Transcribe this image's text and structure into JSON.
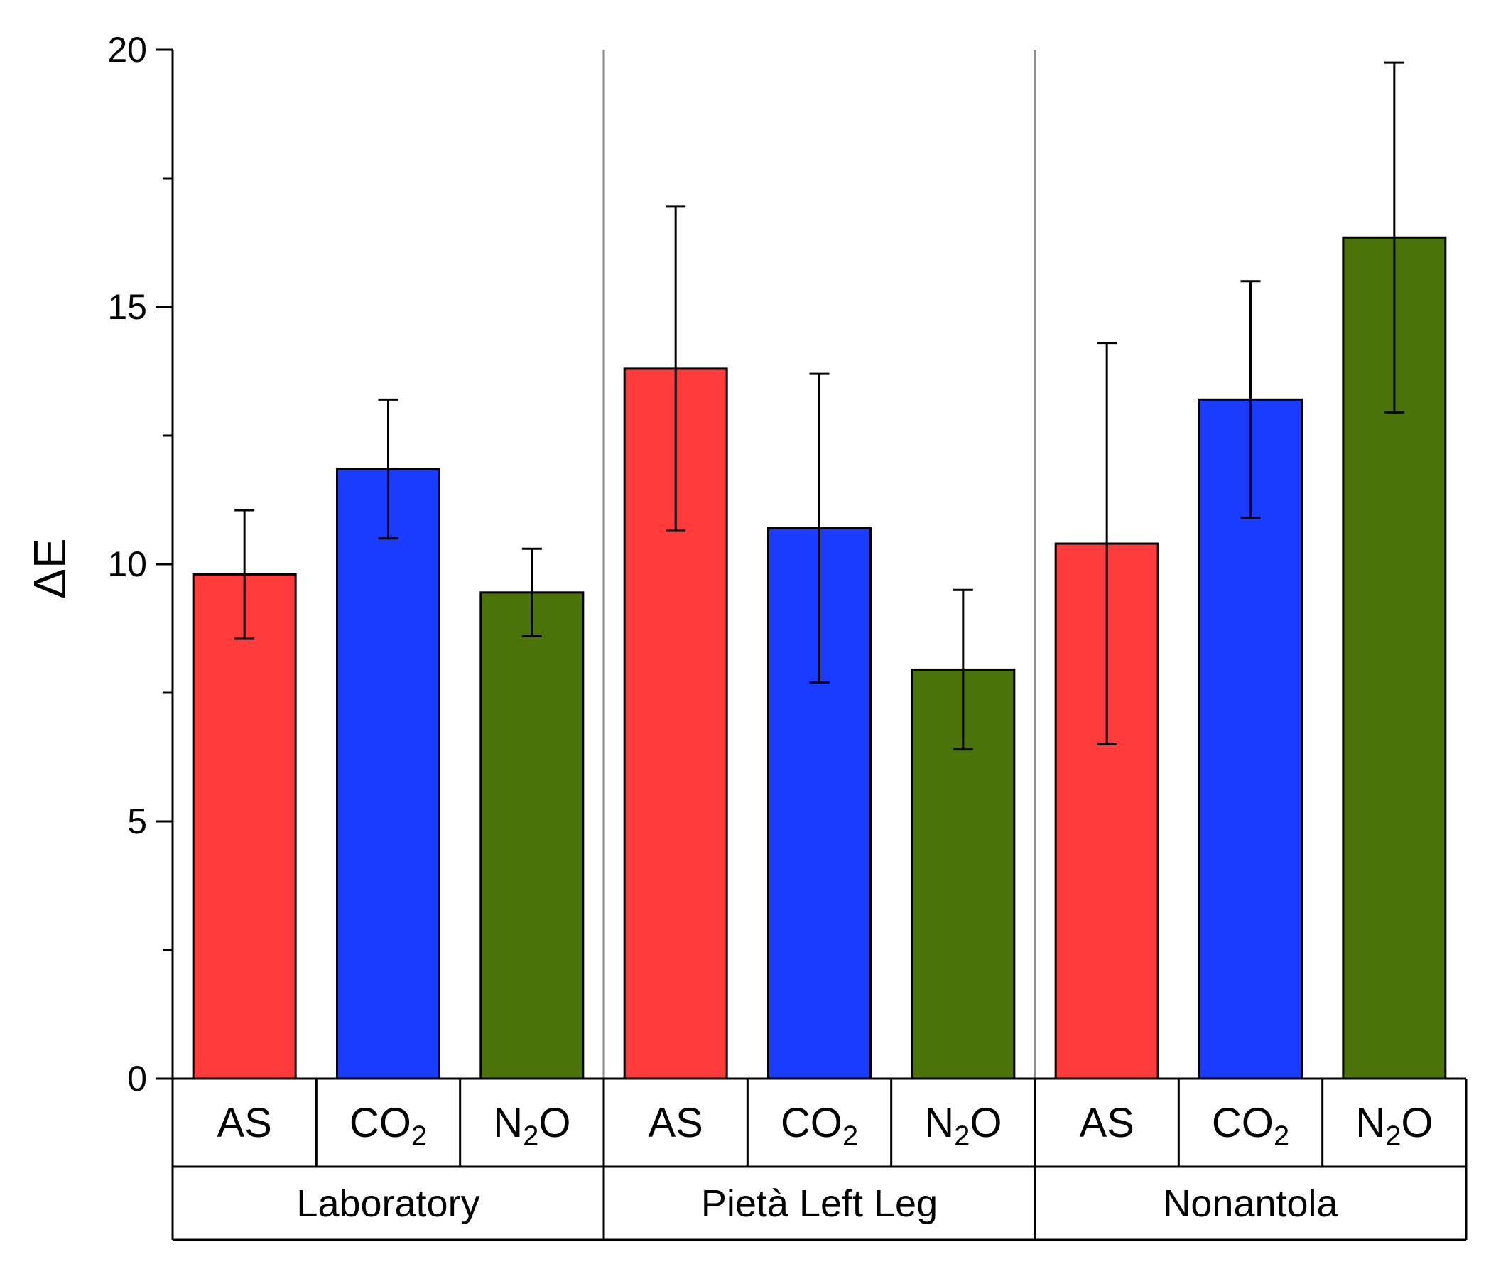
{
  "chart_data": {
    "type": "bar",
    "title": "",
    "xlabel": "",
    "ylabel": "ΔE",
    "ylim": [
      0,
      20
    ],
    "yticks": [
      0,
      5,
      10,
      15,
      20
    ],
    "grid": false,
    "groups": [
      "Laboratory",
      "Pietà Left Leg",
      "Nonantola"
    ],
    "categories": [
      {
        "base": "AS",
        "sub": "",
        "tail": ""
      },
      {
        "base": "CO",
        "sub": "2",
        "tail": ""
      },
      {
        "base": "N",
        "sub": "2",
        "tail": "O"
      }
    ],
    "series": [
      {
        "name": "AS",
        "color": "#FF3B3B",
        "values": [
          9.8,
          13.8,
          10.4
        ],
        "errors": [
          1.25,
          3.15,
          3.9
        ]
      },
      {
        "name": "CO2",
        "color": "#1A3CFF",
        "values": [
          11.85,
          10.7,
          13.2
        ],
        "errors": [
          1.35,
          3.0,
          2.3
        ]
      },
      {
        "name": "N2O",
        "color": "#4A7309",
        "values": [
          9.45,
          7.95,
          16.35
        ],
        "errors": [
          0.85,
          1.55,
          3.4
        ]
      }
    ]
  }
}
